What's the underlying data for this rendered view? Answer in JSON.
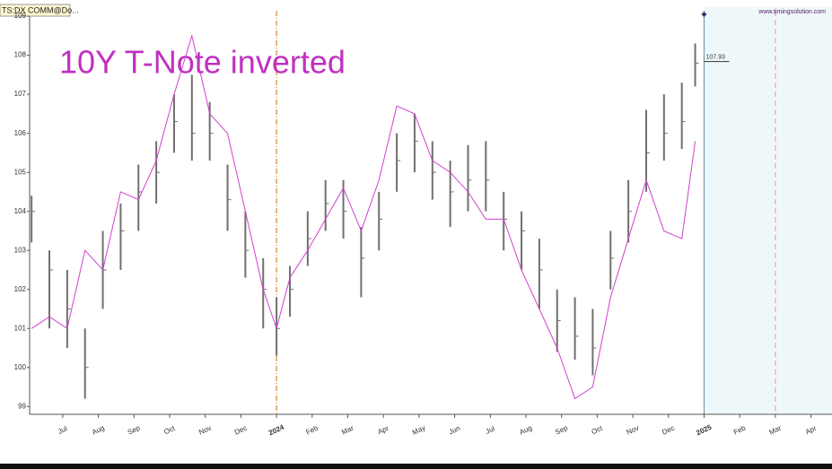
{
  "chart_data": {
    "type": "combo",
    "title": "10Y T-Note inverted",
    "source": "TS:DX COMM@Do...",
    "website": "www.timingsolution.com",
    "last_price": 107.93,
    "xlim": [
      -0.93,
      21.59
    ],
    "ylim": [
      98.8,
      109.14
    ],
    "yticks": [
      99,
      100,
      101,
      102,
      103,
      104,
      105,
      106,
      107,
      108,
      109
    ],
    "xticks": [
      {
        "value": 0,
        "label": "Jul"
      },
      {
        "value": 1,
        "label": "Aug"
      },
      {
        "value": 2,
        "label": "Sep"
      },
      {
        "value": 3,
        "label": "Oct"
      },
      {
        "value": 4,
        "label": "Nov"
      },
      {
        "value": 5,
        "label": "Dec"
      },
      {
        "value": 6,
        "label": "2024"
      },
      {
        "value": 7,
        "label": "Feb"
      },
      {
        "value": 8,
        "label": "Mar"
      },
      {
        "value": 9,
        "label": "Apr"
      },
      {
        "value": 10,
        "label": "May"
      },
      {
        "value": 11,
        "label": "Jun"
      },
      {
        "value": 12,
        "label": "Jul"
      },
      {
        "value": 13,
        "label": "Aug"
      },
      {
        "value": 14,
        "label": "Sep"
      },
      {
        "value": 15,
        "label": "Oct"
      },
      {
        "value": 16,
        "label": "Nov"
      },
      {
        "value": 17,
        "label": "Dec"
      },
      {
        "value": 18,
        "label": "2025"
      },
      {
        "value": 19,
        "label": "Feb"
      },
      {
        "value": 20,
        "label": "Mar"
      },
      {
        "value": 21,
        "label": "Apr"
      }
    ],
    "year_tick_color": "#a01010",
    "future_from": 18,
    "future_color": "#eef8fb",
    "markers": [
      {
        "x": 6,
        "color": "#d08a30",
        "style": "dashdot"
      },
      {
        "x": 18,
        "color": "#7a9aa8",
        "style": "solid"
      },
      {
        "x": 20,
        "color": "#f0a0b0",
        "style": "dashed"
      }
    ],
    "x": [
      -0.875,
      -0.375,
      0.125,
      0.625,
      1.125,
      1.625,
      2.125,
      2.625,
      3.125,
      3.625,
      4.125,
      4.625,
      5.125,
      5.625,
      6.0,
      6.375,
      6.875,
      7.375,
      7.875,
      8.375,
      8.875,
      9.375,
      9.875,
      10.375,
      10.875,
      11.375,
      11.875,
      12.375,
      12.875,
      13.375,
      13.875,
      14.375,
      14.875,
      15.375,
      15.875,
      16.375,
      16.875,
      17.375,
      17.75
    ],
    "series": [
      {
        "type": "hilo",
        "color": "#707070",
        "values": [
          104,
          102.5,
          101.5,
          100,
          102.5,
          103.5,
          104.5,
          105,
          106.3,
          106,
          106,
          104.3,
          103,
          102,
          101,
          102,
          103.3,
          104.2,
          104,
          102.8,
          103.8,
          105.3,
          105.8,
          105,
          104.5,
          104.8,
          104.8,
          103.8,
          103.5,
          102.5,
          101.2,
          100.8,
          100.5,
          102.8,
          104,
          105.5,
          106,
          106.3,
          107.8
        ],
        "high": [
          104.4,
          103,
          102.5,
          101,
          103.5,
          104.2,
          105.2,
          105.8,
          107,
          107.5,
          106.8,
          105.2,
          104,
          102.8,
          101.8,
          102.6,
          104,
          104.8,
          104.8,
          103.6,
          104.5,
          106,
          106.5,
          105.8,
          105.3,
          105.7,
          105.8,
          104.5,
          104,
          103.3,
          102,
          101.8,
          101.5,
          103.5,
          104.8,
          106.6,
          107,
          107.3,
          108.3
        ],
        "low": [
          103.2,
          101,
          100.5,
          99.2,
          101.5,
          102.5,
          103.5,
          104.2,
          105.5,
          105.3,
          105.3,
          103.5,
          102.3,
          101,
          100.3,
          101.3,
          102.6,
          103.5,
          103.3,
          101.8,
          103,
          104.5,
          105,
          104.3,
          103.6,
          104,
          104,
          103,
          102.5,
          101.5,
          100.4,
          100.2,
          99.8,
          102,
          103.2,
          104.5,
          105.3,
          105.6,
          107.2
        ]
      },
      {
        "type": "line",
        "color": "#d040d0",
        "values": [
          101,
          101.3,
          101,
          103,
          102.5,
          104.5,
          104.3,
          105.3,
          107,
          108.5,
          106.5,
          106,
          104,
          102,
          101,
          102.3,
          103,
          103.8,
          104.6,
          103.5,
          104.8,
          106.7,
          106.5,
          105.3,
          105,
          104.5,
          103.8,
          103.8,
          102.5,
          101.5,
          100.5,
          99.2,
          99.5,
          101.8,
          103.3,
          104.8,
          103.5,
          103.3,
          105.8
        ]
      }
    ]
  }
}
